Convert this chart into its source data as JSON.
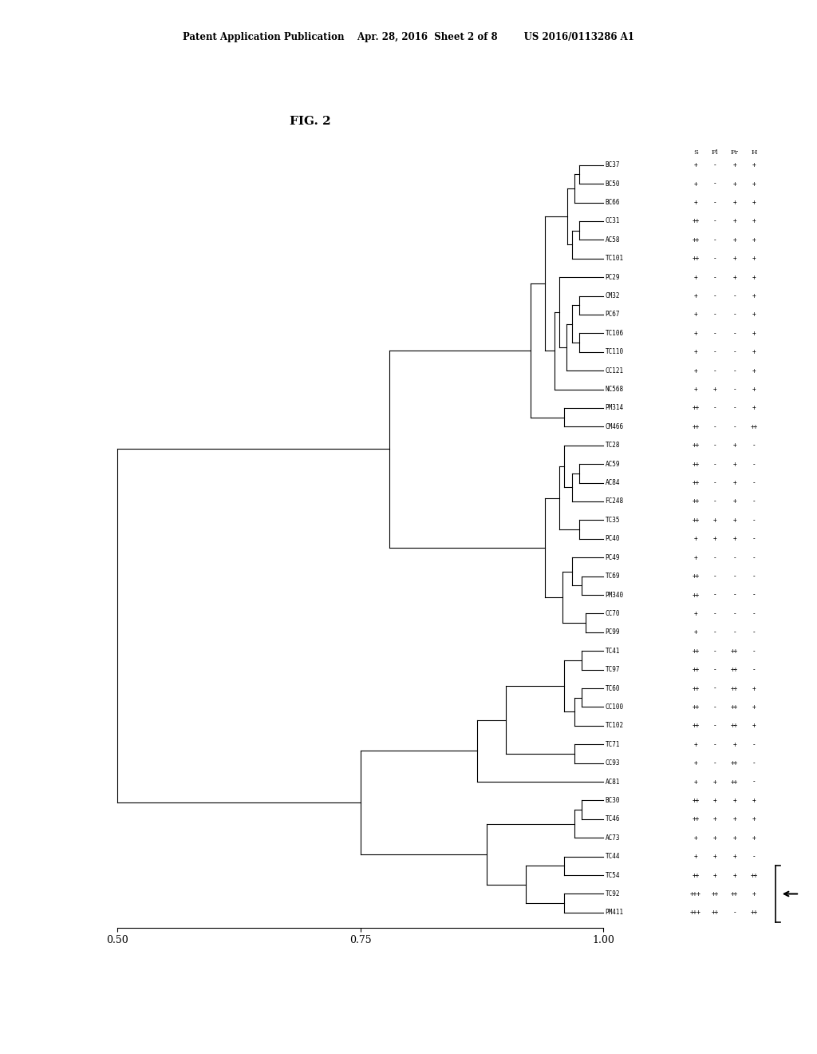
{
  "title": "FIG. 2",
  "header_text": "Patent Application Publication    Apr. 28, 2016  Sheet 2 of 8        US 2016/0113286 A1",
  "col_headers": [
    "S",
    "Fl",
    "Fr",
    "H"
  ],
  "labels": [
    "BC37",
    "BC50",
    "BC66",
    "CC31",
    "AC58",
    "TC101",
    "PC29",
    "CM32",
    "PC67",
    "TC106",
    "TC110",
    "CC121",
    "NC568",
    "PM314",
    "CM466",
    "TC28",
    "AC59",
    "AC84",
    "FC248",
    "TC35",
    "PC40",
    "PC49",
    "TC69",
    "PM340",
    "CC70",
    "PC99",
    "TC41",
    "TC97",
    "TC60",
    "CC100",
    "TC102",
    "TC71",
    "CC93",
    "AC81",
    "BC30",
    "TC46",
    "AC73",
    "TC44",
    "TC54",
    "TC92",
    "PM411"
  ],
  "table_data": [
    [
      "+",
      "-",
      "+",
      "+"
    ],
    [
      "+",
      "-",
      "+",
      "+"
    ],
    [
      "+",
      "-",
      "+",
      "+"
    ],
    [
      "++",
      "-",
      "+",
      "+"
    ],
    [
      "++",
      "-",
      "+",
      "+"
    ],
    [
      "++",
      "-",
      "+",
      "+"
    ],
    [
      "+",
      "-",
      "+",
      "+"
    ],
    [
      "+",
      "-",
      "-",
      "+"
    ],
    [
      "+",
      "-",
      "-",
      "+"
    ],
    [
      "+",
      "-",
      "-",
      "+"
    ],
    [
      "+",
      "-",
      "-",
      "+"
    ],
    [
      "+",
      "-",
      "-",
      "+"
    ],
    [
      "+",
      "+",
      "-",
      "+"
    ],
    [
      "++",
      "-",
      "-",
      "+"
    ],
    [
      "++",
      "-",
      "-",
      "++"
    ],
    [
      "++",
      "-",
      "+",
      "-"
    ],
    [
      "++",
      "-",
      "+",
      "-"
    ],
    [
      "++",
      "-",
      "+",
      "-"
    ],
    [
      "++",
      "-",
      "+",
      "-"
    ],
    [
      "++",
      "+",
      "+",
      "-"
    ],
    [
      "+",
      "+",
      "+",
      "-"
    ],
    [
      "+",
      "-",
      "-",
      "-"
    ],
    [
      "++",
      "-",
      "-",
      "-"
    ],
    [
      "++",
      "-",
      "-",
      "-"
    ],
    [
      "+",
      "-",
      "-",
      "-"
    ],
    [
      "+",
      "-",
      "-",
      "-"
    ],
    [
      "++",
      "-",
      "++",
      "-"
    ],
    [
      "++",
      "-",
      "++",
      "-"
    ],
    [
      "++",
      "-",
      "++",
      "+"
    ],
    [
      "++",
      "-",
      "++",
      "+"
    ],
    [
      "++",
      "-",
      "++",
      "+"
    ],
    [
      "+",
      "-",
      "+",
      "-"
    ],
    [
      "+",
      "-",
      "++",
      "-"
    ],
    [
      "+",
      "+",
      "++",
      "-"
    ],
    [
      "++",
      "+",
      "+",
      "+"
    ],
    [
      "++",
      "+",
      "+",
      "+"
    ],
    [
      "+",
      "+",
      "+",
      "+"
    ],
    [
      "+",
      "+",
      "+",
      "-"
    ],
    [
      "++",
      "+",
      "+",
      "++"
    ],
    [
      "+++",
      "++",
      "++",
      "+"
    ],
    [
      "+++",
      "++",
      "-",
      "++"
    ]
  ],
  "background_color": "#ffffff",
  "text_color": "#000000",
  "line_color": "#000000"
}
